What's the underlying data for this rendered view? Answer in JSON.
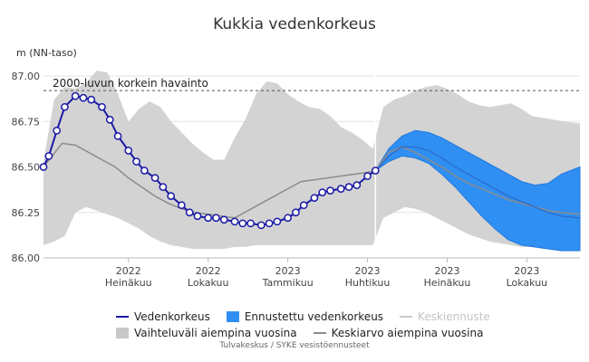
{
  "chart_data": {
    "type": "line",
    "title": "Kukkia vedenkorkeus",
    "ylabel": "m (NN-taso)",
    "ylim": [
      86.0,
      87.0
    ],
    "yticks": [
      "86.00",
      "86.25",
      "86.50",
      "86.75",
      "87.00"
    ],
    "xticks": [
      {
        "year": "2022",
        "month": "Heinäkuu",
        "x": 4
      },
      {
        "year": "2022",
        "month": "Lokakuu",
        "x": 7
      },
      {
        "year": "2023",
        "month": "Tammikuu",
        "x": 10
      },
      {
        "year": "2023",
        "month": "Huhtikuu",
        "x": 13
      },
      {
        "year": "2023",
        "month": "Heinäkuu",
        "x": 16
      },
      {
        "year": "2023",
        "month": "Lokakuu",
        "x": 19
      }
    ],
    "xlim": [
      0.8,
      21.0
    ],
    "now_x": 13.3,
    "reference": {
      "label": "2000-luvun korkein havainto",
      "y": 86.92
    },
    "series": [
      {
        "name": "Vedenkorkeus",
        "color": "#1919a6",
        "x": [
          0.8,
          1.0,
          1.3,
          1.6,
          2.0,
          2.3,
          2.6,
          3.0,
          3.3,
          3.6,
          4.0,
          4.3,
          4.6,
          5.0,
          5.3,
          5.6,
          6.0,
          6.3,
          6.6,
          7.0,
          7.3,
          7.6,
          8.0,
          8.3,
          8.6,
          9.0,
          9.3,
          9.6,
          10.0,
          10.3,
          10.6,
          11.0,
          11.3,
          11.6,
          12.0,
          12.3,
          12.6,
          13.0,
          13.3
        ],
        "y": [
          86.5,
          86.56,
          86.7,
          86.83,
          86.89,
          86.88,
          86.87,
          86.83,
          86.76,
          86.67,
          86.59,
          86.53,
          86.48,
          86.44,
          86.39,
          86.34,
          86.29,
          86.25,
          86.23,
          86.22,
          86.22,
          86.21,
          86.2,
          86.19,
          86.19,
          86.18,
          86.19,
          86.2,
          86.22,
          86.25,
          86.29,
          86.33,
          86.36,
          86.37,
          86.38,
          86.39,
          86.4,
          86.45,
          86.48
        ]
      },
      {
        "name": "Keskiarvo aiempina vuosina",
        "color": "#8c8c8c",
        "x": [
          0.8,
          1.5,
          2.0,
          2.5,
          3.0,
          3.5,
          4.0,
          4.5,
          5.0,
          5.5,
          6.0,
          6.5,
          7.0,
          7.5,
          8.0,
          8.5,
          9.0,
          9.5,
          10.0,
          10.5,
          11.0,
          11.5,
          12.0,
          12.5,
          13.0,
          13.3,
          13.8,
          14.3,
          14.8,
          15.3,
          15.8,
          16.3,
          16.8,
          17.3,
          17.8,
          18.3,
          18.8,
          19.3,
          19.8,
          20.3,
          21.0
        ],
        "y": [
          86.5,
          86.63,
          86.62,
          86.58,
          86.54,
          86.5,
          86.44,
          86.39,
          86.34,
          86.3,
          86.27,
          86.25,
          86.24,
          86.23,
          86.22,
          86.26,
          86.3,
          86.34,
          86.38,
          86.42,
          86.43,
          86.44,
          86.45,
          86.46,
          86.47,
          86.48,
          86.58,
          86.61,
          86.58,
          86.54,
          86.5,
          86.45,
          86.41,
          86.38,
          86.35,
          86.32,
          86.3,
          86.28,
          86.26,
          86.25,
          86.24
        ]
      },
      {
        "name": "Keskiennuste",
        "color": "#999999",
        "x": [
          13.3,
          13.8,
          14.3,
          14.8,
          15.3,
          15.8,
          16.3,
          16.8,
          17.3,
          17.8,
          18.3,
          18.8,
          19.3,
          19.8,
          20.3,
          21.0
        ],
        "y": [
          86.48,
          86.56,
          86.61,
          86.61,
          86.59,
          86.55,
          86.5,
          86.46,
          86.42,
          86.38,
          86.34,
          86.31,
          86.28,
          86.25,
          86.23,
          86.22
        ]
      }
    ],
    "bands": [
      {
        "name": "Vaihteluväli aiempina vuosina",
        "color": "#d3d3d3",
        "x": [
          0.8,
          1.2,
          1.6,
          2.0,
          2.4,
          2.8,
          3.2,
          3.6,
          4.0,
          4.4,
          4.8,
          5.2,
          5.6,
          6.0,
          6.4,
          6.8,
          7.2,
          7.6,
          8.0,
          8.4,
          8.8,
          9.2,
          9.6,
          10.0,
          10.4,
          10.8,
          11.2,
          11.6,
          12.0,
          12.4,
          12.8,
          13.2,
          13.6,
          14.0,
          14.4,
          14.8,
          15.2,
          15.6,
          16.0,
          16.4,
          16.8,
          17.2,
          17.6,
          18.0,
          18.4,
          18.8,
          19.2,
          19.6,
          20.0,
          20.4,
          21.0
        ],
        "low": [
          86.07,
          86.09,
          86.12,
          86.25,
          86.28,
          86.26,
          86.24,
          86.22,
          86.19,
          86.16,
          86.12,
          86.09,
          86.07,
          86.06,
          86.05,
          86.05,
          86.05,
          86.05,
          86.06,
          86.06,
          86.07,
          86.07,
          86.07,
          86.07,
          86.07,
          86.07,
          86.07,
          86.07,
          86.07,
          86.07,
          86.07,
          86.07,
          86.22,
          86.25,
          86.28,
          86.27,
          86.25,
          86.22,
          86.19,
          86.16,
          86.13,
          86.11,
          86.09,
          86.08,
          86.07,
          86.06,
          86.06,
          86.05,
          86.05,
          86.05,
          86.05
        ],
        "high": [
          86.53,
          86.87,
          86.94,
          86.93,
          86.96,
          87.03,
          87.02,
          86.9,
          86.75,
          86.82,
          86.86,
          86.83,
          86.75,
          86.69,
          86.63,
          86.58,
          86.54,
          86.54,
          86.66,
          86.76,
          86.9,
          86.97,
          86.96,
          86.9,
          86.86,
          86.83,
          86.82,
          86.78,
          86.72,
          86.69,
          86.65,
          86.6,
          86.83,
          86.87,
          86.89,
          86.92,
          86.94,
          86.95,
          86.93,
          86.9,
          86.86,
          86.84,
          86.83,
          86.84,
          86.85,
          86.82,
          86.78,
          86.77,
          86.76,
          86.75,
          86.74
        ]
      },
      {
        "name": "Ennustettu vedenkorkeus",
        "color": "#2f8ff2",
        "x": [
          13.3,
          13.8,
          14.3,
          14.8,
          15.3,
          15.8,
          16.3,
          16.8,
          17.3,
          17.8,
          18.3,
          18.8,
          19.3,
          19.8,
          20.3,
          21.0
        ],
        "low": [
          86.48,
          86.53,
          86.56,
          86.55,
          86.52,
          86.46,
          86.39,
          86.31,
          86.23,
          86.16,
          86.1,
          86.07,
          86.06,
          86.05,
          86.04,
          86.04
        ],
        "high": [
          86.48,
          86.6,
          86.67,
          86.7,
          86.69,
          86.66,
          86.62,
          86.58,
          86.54,
          86.5,
          86.46,
          86.42,
          86.4,
          86.41,
          86.46,
          86.5
        ]
      }
    ]
  },
  "legend": {
    "row1": [
      {
        "label": "Vedenkorkeus",
        "kind": "line",
        "color": "#1919a6",
        "dim": false
      },
      {
        "label": "Ennustettu vedenkorkeus",
        "kind": "box",
        "color": "#2f8ff2",
        "dim": false
      },
      {
        "label": "Keskiennuste",
        "kind": "line",
        "color": "#cccccc",
        "dim": true
      }
    ],
    "row2": [
      {
        "label": "Vaihteluväli aiempina vuosina",
        "kind": "box",
        "color": "#c8c8c8",
        "dim": false
      },
      {
        "label": "Keskiarvo aiempina vuosina",
        "kind": "line",
        "color": "#8c8c8c",
        "dim": false
      }
    ]
  },
  "credit": "Tulvakeskus / SYKE vesistöennusteet"
}
